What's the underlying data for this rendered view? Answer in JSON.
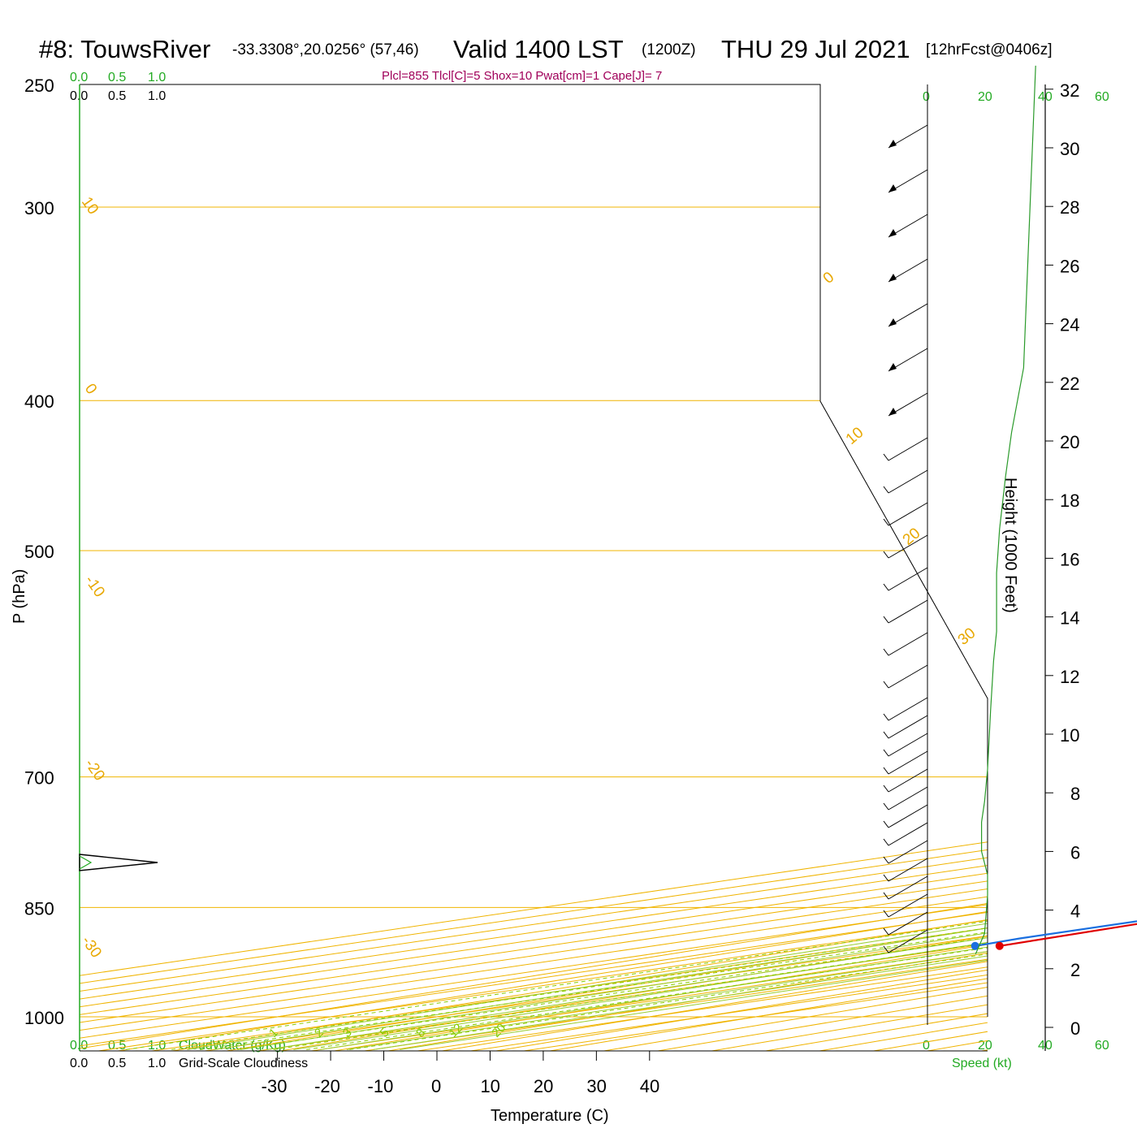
{
  "header": {
    "station": "#8: TouwsRiver",
    "coords": "-33.3308°,20.0256° (57,46)",
    "valid": "Valid 1400 LST",
    "utc": "(1200Z)",
    "date": "THU 29 Jul 2021",
    "forecast": "[12hrFcst@0406z]"
  },
  "params": "Plcl=855 Tlcl[C]=5 Shox=10 Pwat[cm]=1 Cape[J]= 7",
  "top_scales": {
    "cloudwater_ticks": [
      "0.0",
      "0.5",
      "1.0"
    ],
    "cloudiness_ticks": [
      "0.0",
      "0.5",
      "1.0"
    ]
  },
  "bottom_scales": {
    "cloudwater_ticks": [
      "0.0",
      "0.5",
      "1.0"
    ],
    "cloudwater_label": "CloudWater (g/Kg)",
    "cloudiness_ticks": [
      "0.0",
      "0.5",
      "1.0"
    ],
    "cloudiness_label": "Grid-Scale Cloudiness"
  },
  "speed_axis": {
    "ticks": [
      "0",
      "20",
      "40",
      "60"
    ],
    "label": "Speed (kt)"
  },
  "chart_data": {
    "type": "line",
    "xlabel": "Temperature (C)",
    "ylabel": "P (hPa)",
    "y2label": "Height (1000 Feet)",
    "x_ticks": [
      -30,
      -20,
      -10,
      0,
      10,
      20,
      30,
      40
    ],
    "pressure_ticks": [
      250,
      300,
      400,
      500,
      700,
      850,
      1000
    ],
    "height_ticks": [
      0,
      2,
      4,
      6,
      8,
      10,
      12,
      14,
      16,
      18,
      20,
      22,
      24,
      26,
      28,
      30,
      32
    ],
    "isotherm_labels": [
      "10",
      "0",
      "-10",
      "-20",
      "-30"
    ],
    "right_isotherm_labels": [
      "0",
      "10",
      "20",
      "30"
    ],
    "mixing_ratio_labels": [
      "1",
      "2",
      "3",
      "5",
      "8",
      "12",
      "20"
    ],
    "ylim": [
      1000,
      250
    ],
    "xlim": [
      -33.8,
      36.2
    ],
    "series": [
      {
        "name": "Temperature",
        "color": "#e00000",
        "points": [
          [
            15.2,
            900
          ],
          [
            12.5,
            865
          ],
          [
            11,
            845
          ],
          [
            10.8,
            822
          ],
          [
            9.8,
            797
          ],
          [
            12.8,
            762
          ],
          [
            15.3,
            693
          ],
          [
            16.4,
            649
          ],
          [
            15.8,
            597
          ],
          [
            14.6,
            545
          ],
          [
            13.0,
            496
          ],
          [
            11.5,
            456
          ],
          [
            10.4,
            419
          ],
          [
            8.3,
            378
          ],
          [
            5.4,
            340
          ],
          [
            2.0,
            303
          ],
          [
            -1.8,
            269
          ]
        ]
      },
      {
        "name": "Dewpoint",
        "color": "#1a6fe0",
        "points": [
          [
            10.6,
            900
          ],
          [
            9.4,
            890
          ],
          [
            9.5,
            850
          ],
          [
            9.7,
            822
          ],
          [
            9.8,
            797
          ],
          [
            5.8,
            772
          ],
          [
            0.8,
            727
          ],
          [
            -2.2,
            678
          ],
          [
            -5.5,
            624
          ],
          [
            -9.5,
            578
          ],
          [
            -16.3,
            535
          ],
          [
            -30.9,
            488
          ],
          [
            -49.8,
            440
          ],
          [
            -41.1,
            340
          ],
          [
            -34.6,
            300
          ],
          [
            -32.5,
            278
          ],
          [
            -32.0,
            269
          ]
        ]
      }
    ],
    "surface_markers": [
      {
        "series": "Temperature",
        "t": 15.2,
        "p": 900
      },
      {
        "series": "Dewpoint",
        "t": 10.6,
        "p": 900
      }
    ],
    "wind_profile": {
      "color": "#2a9a2a",
      "points_kt_feet": [
        [
          16,
          32.8
        ],
        [
          12,
          22.5
        ],
        [
          8,
          20.3
        ],
        [
          6,
          18.8
        ],
        [
          4,
          17.0
        ],
        [
          3,
          15.5
        ],
        [
          3,
          13.5
        ],
        [
          2,
          12.5
        ],
        [
          1,
          10.8
        ],
        [
          0,
          8.8
        ],
        [
          -1,
          7.7
        ],
        [
          -2,
          7.0
        ],
        [
          -2,
          6.0
        ],
        [
          0,
          5.2
        ],
        [
          0,
          4.5
        ],
        [
          -1,
          3.2
        ],
        [
          -4,
          2.5
        ]
      ]
    }
  }
}
